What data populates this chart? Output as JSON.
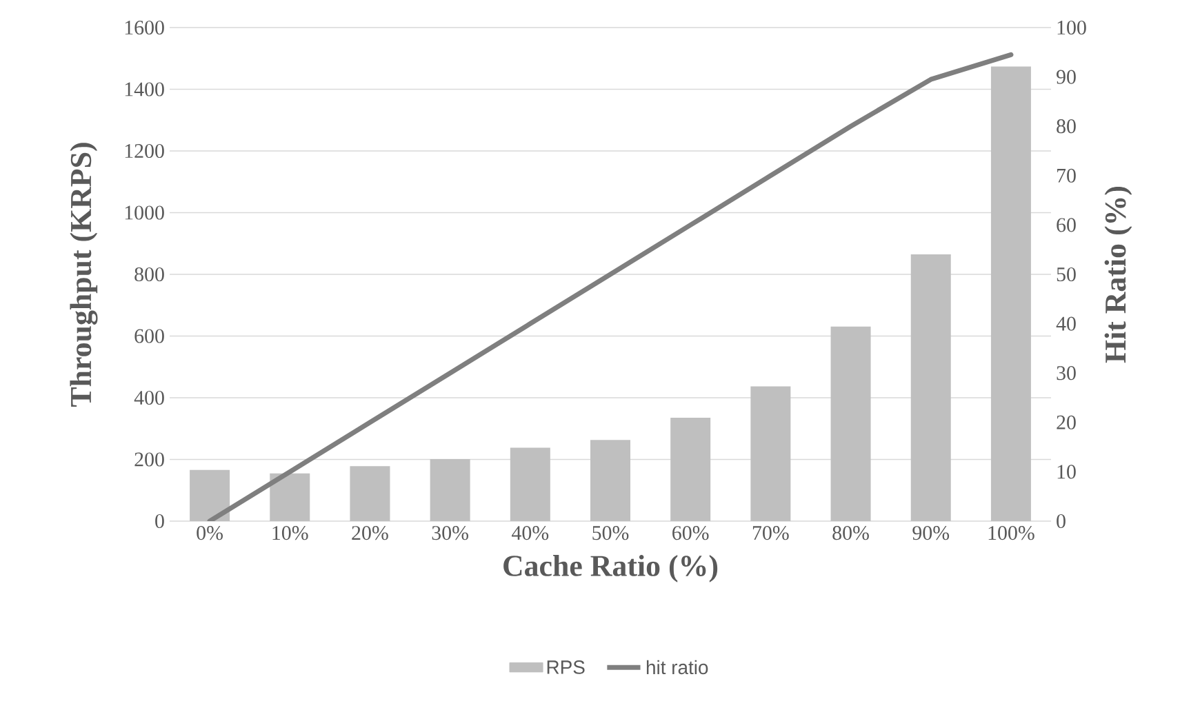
{
  "chart_data": {
    "type": "bar",
    "xlabel": "Cache Ratio (%)",
    "ylabel": "Throughput (KRPS)",
    "y2label": "Hit Ratio (%)",
    "categories": [
      "0%",
      "10%",
      "20%",
      "30%",
      "40%",
      "50%",
      "60%",
      "70%",
      "80%",
      "90%",
      "100%"
    ],
    "series": [
      {
        "name": "RPS",
        "color": "#bfbfbf",
        "values": [
          166,
          155,
          178,
          201,
          238,
          263,
          335,
          437,
          631,
          865,
          1474
        ]
      },
      {
        "name": "hit ratio",
        "type": "line",
        "axis": "y2",
        "color": "#7f7f7f",
        "values": [
          0,
          10,
          20,
          30,
          40,
          50,
          60,
          70,
          80,
          89.5,
          94.5
        ]
      }
    ],
    "ylim": [
      0,
      1600
    ],
    "yticks": [
      0,
      200,
      400,
      600,
      800,
      1000,
      1200,
      1400,
      1600
    ],
    "y2lim": [
      0,
      100
    ],
    "y2ticks": [
      0,
      10,
      20,
      30,
      40,
      50,
      60,
      70,
      80,
      90,
      100
    ],
    "grid": "y",
    "legend": "bottom"
  }
}
